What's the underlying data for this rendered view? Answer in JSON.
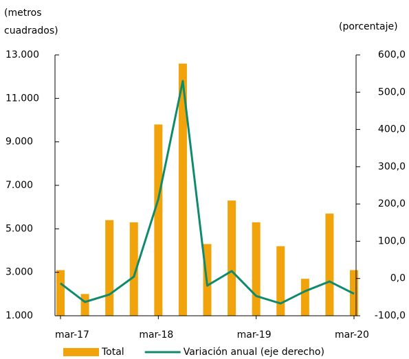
{
  "chart_data": {
    "type": "bar-line",
    "y_label": "(metros cuadrados)",
    "y2_label": "(porcentaje)",
    "categories": [
      "mar-17",
      null,
      null,
      null,
      "mar-18",
      null,
      null,
      null,
      "mar-19",
      null,
      null,
      null,
      "mar-20"
    ],
    "series": [
      {
        "name": "Total",
        "type": "bar",
        "color": "#f0a30a",
        "values": [
          3100,
          2000,
          5400,
          5300,
          9800,
          12600,
          4300,
          6300,
          5300,
          4200,
          2700,
          5700,
          3100
        ]
      },
      {
        "name": "Variación anual (eje derecho)",
        "type": "line",
        "axis": "y2",
        "color": "#0f8a6c",
        "values": [
          -13,
          -63,
          -43,
          5,
          213,
          530,
          -19,
          20,
          -47,
          -67,
          -34,
          -8,
          -41
        ]
      }
    ],
    "ylim": [
      1000,
      13000
    ],
    "yticks": [
      {
        "value": 1000,
        "label": "1.000"
      },
      {
        "value": 3000,
        "label": "3.000"
      },
      {
        "value": 5000,
        "label": "5.000"
      },
      {
        "value": 7000,
        "label": "7.000"
      },
      {
        "value": 9000,
        "label": "9.000"
      },
      {
        "value": 11000,
        "label": "11.000"
      },
      {
        "value": 13000,
        "label": "13.000"
      }
    ],
    "y2lim": [
      -100,
      600
    ],
    "y2ticks": [
      {
        "value": -100,
        "label": "-100,0"
      },
      {
        "value": 0,
        "label": "0,0"
      },
      {
        "value": 100,
        "label": "100,0"
      },
      {
        "value": 200,
        "label": "200,0"
      },
      {
        "value": 300,
        "label": "300,0"
      },
      {
        "value": 400,
        "label": "400,0"
      },
      {
        "value": 500,
        "label": "500,0"
      },
      {
        "value": 600,
        "label": "600,0"
      }
    ]
  }
}
